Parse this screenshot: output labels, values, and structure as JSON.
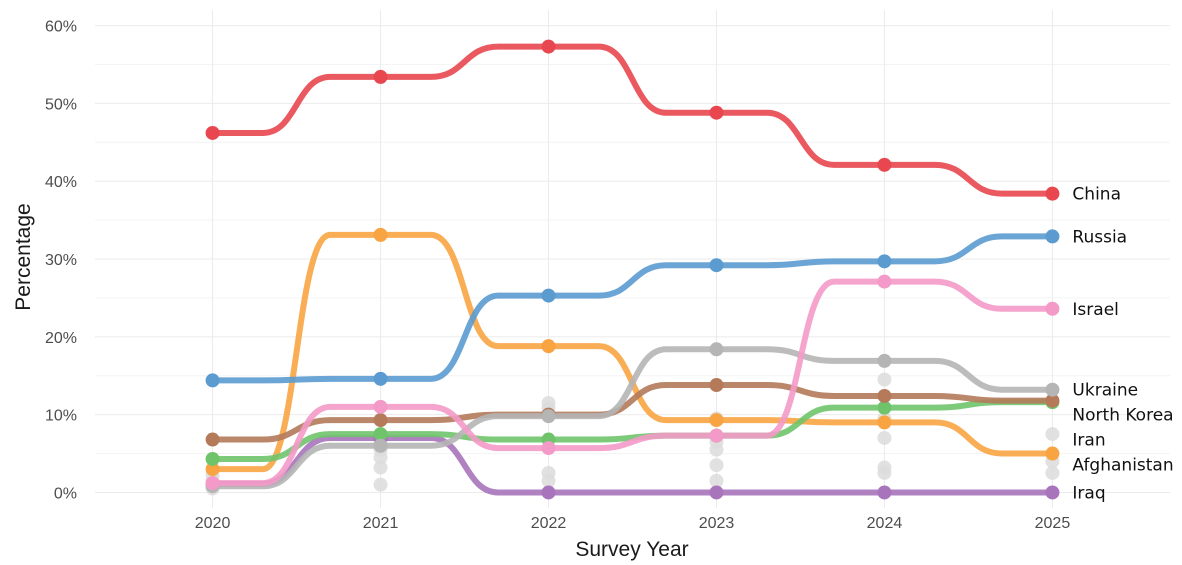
{
  "chart_data": {
    "type": "line",
    "xlabel": "Survey Year",
    "ylabel": "Percentage",
    "x": [
      2020,
      2021,
      2022,
      2023,
      2024,
      2025
    ],
    "xticks": [
      "2020",
      "2021",
      "2022",
      "2023",
      "2024",
      "2025"
    ],
    "yticks": [
      {
        "value": 0,
        "label": "0%"
      },
      {
        "value": 10,
        "label": "10%"
      },
      {
        "value": 20,
        "label": "20%"
      },
      {
        "value": 30,
        "label": "30%"
      },
      {
        "value": 40,
        "label": "40%"
      },
      {
        "value": 50,
        "label": "50%"
      },
      {
        "value": 60,
        "label": "60%"
      }
    ],
    "xlim": [
      2019.3,
      2025.7
    ],
    "ylim": [
      -2,
      62
    ],
    "grid": true,
    "legend": "direct labels at right end of lines",
    "series": [
      {
        "name": "China",
        "color": "#e8474f",
        "values": [
          46.2,
          53.4,
          57.3,
          48.8,
          42.1,
          38.4
        ]
      },
      {
        "name": "Russia",
        "color": "#5b9bd0",
        "values": [
          14.4,
          14.6,
          25.3,
          29.2,
          29.7,
          32.9
        ]
      },
      {
        "name": "Israel",
        "color": "#f39ac8",
        "values": [
          1.2,
          11.0,
          5.7,
          7.3,
          27.1,
          23.6
        ]
      },
      {
        "name": "Ukraine",
        "color": "#b5b5b5",
        "values": [
          0.8,
          6.0,
          9.8,
          18.4,
          16.9,
          13.2
        ]
      },
      {
        "name": "North Korea",
        "color": "#b47a5a",
        "values": [
          6.8,
          9.3,
          10.0,
          13.8,
          12.4,
          11.8
        ]
      },
      {
        "name": "Iran",
        "color": "#6fc46b",
        "values": [
          4.3,
          7.5,
          6.8,
          7.3,
          10.9,
          11.6
        ]
      },
      {
        "name": "Afghanistan",
        "color": "#f8a442",
        "values": [
          3.0,
          33.1,
          18.8,
          9.3,
          9.0,
          5.0
        ]
      },
      {
        "name": "Iraq",
        "color": "#a874bb",
        "values": [
          1.1,
          7.0,
          0.0,
          0.0,
          0.0,
          0.0
        ]
      }
    ],
    "background_points": {
      "color": "#dcdcdc",
      "x": [
        2020,
        2020,
        2020,
        2020,
        2021,
        2021,
        2021,
        2021,
        2021,
        2022,
        2022,
        2022,
        2022,
        2023,
        2023,
        2023,
        2023,
        2023,
        2024,
        2024,
        2024,
        2024,
        2024,
        2025,
        2025,
        2025
      ],
      "y": [
        0.5,
        1.5,
        2.2,
        0.9,
        1.0,
        4.5,
        5.5,
        6.5,
        3.2,
        1.5,
        2.5,
        11.5,
        10.8,
        1.5,
        3.5,
        5.5,
        9.5,
        6.5,
        2.5,
        3.2,
        7.0,
        14.5,
        9.5,
        2.5,
        4.0,
        7.5
      ]
    }
  }
}
